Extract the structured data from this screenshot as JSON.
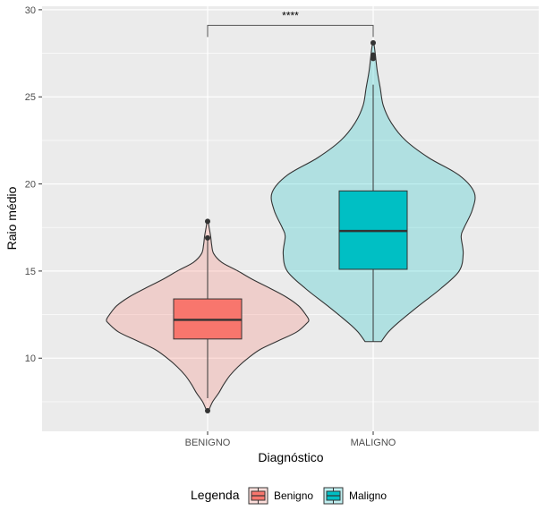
{
  "chart_data": {
    "type": "violin",
    "title": "",
    "xlabel": "Diagnóstico",
    "ylabel": "Raio médio",
    "ylim": [
      5.8,
      30.2
    ],
    "yticks": [
      10,
      15,
      20,
      25,
      30
    ],
    "categories": [
      "BENIGNO",
      "MALIGNO"
    ],
    "grid": true,
    "colors": {
      "BENIGNO": "#F8766D",
      "MALIGNO": "#00BFC4",
      "panel": "#EBEBEB",
      "grid": "#FFFFFF",
      "outline": "#333333"
    },
    "series": [
      {
        "name": "Benigno",
        "category": "BENIGNO",
        "box": {
          "min": 7.7,
          "q1": 11.1,
          "median": 12.2,
          "q3": 13.4,
          "max": 16.8
        },
        "outliers": [
          6.98,
          16.9,
          17.85
        ],
        "violin_range": [
          6.98,
          17.85
        ],
        "density_halfwidths": [
          [
            6.98,
            0.01
          ],
          [
            7.5,
            0.05
          ],
          [
            8.0,
            0.11
          ],
          [
            8.5,
            0.16
          ],
          [
            9.0,
            0.22
          ],
          [
            9.5,
            0.3
          ],
          [
            10.0,
            0.4
          ],
          [
            10.5,
            0.52
          ],
          [
            11.0,
            0.7
          ],
          [
            11.5,
            0.88
          ],
          [
            12.0,
            0.98
          ],
          [
            12.2,
            1.0
          ],
          [
            12.5,
            0.97
          ],
          [
            13.0,
            0.9
          ],
          [
            13.5,
            0.78
          ],
          [
            14.0,
            0.62
          ],
          [
            14.5,
            0.45
          ],
          [
            15.0,
            0.3
          ],
          [
            15.5,
            0.14
          ],
          [
            16.0,
            0.06
          ],
          [
            16.5,
            0.04
          ],
          [
            17.0,
            0.03
          ],
          [
            17.5,
            0.015
          ],
          [
            17.85,
            0.005
          ]
        ]
      },
      {
        "name": "Maligno",
        "category": "MALIGNO",
        "box": {
          "min": 10.95,
          "q1": 15.1,
          "median": 17.3,
          "q3": 19.6,
          "max": 25.7
        },
        "outliers": [
          27.2,
          27.4,
          28.1
        ],
        "violin_range": [
          10.95,
          28.11
        ],
        "density_halfwidths": [
          [
            10.95,
            0.08
          ],
          [
            11.5,
            0.15
          ],
          [
            12.0,
            0.24
          ],
          [
            13.0,
            0.45
          ],
          [
            14.0,
            0.67
          ],
          [
            15.0,
            0.85
          ],
          [
            16.0,
            0.89
          ],
          [
            17.0,
            0.87
          ],
          [
            17.5,
            0.9
          ],
          [
            18.5,
            0.98
          ],
          [
            19.5,
            1.0
          ],
          [
            20.5,
            0.85
          ],
          [
            21.5,
            0.55
          ],
          [
            22.5,
            0.32
          ],
          [
            23.5,
            0.18
          ],
          [
            24.5,
            0.1
          ],
          [
            25.5,
            0.07
          ],
          [
            26.5,
            0.04
          ],
          [
            27.5,
            0.02
          ],
          [
            28.11,
            0.005
          ]
        ]
      }
    ],
    "annotations": [
      {
        "type": "significance",
        "label": "****",
        "from": "BENIGNO",
        "to": "MALIGNO",
        "y": 29.1
      }
    ],
    "legend": {
      "title": "Legenda",
      "position": "bottom",
      "items": [
        "Benigno",
        "Maligno"
      ]
    }
  }
}
